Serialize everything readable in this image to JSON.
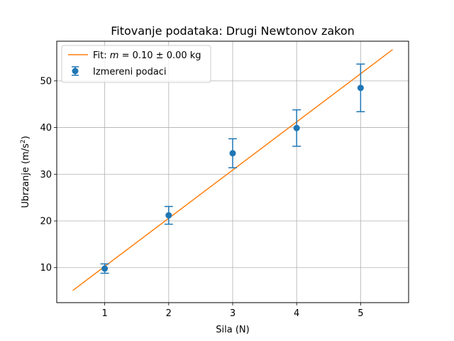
{
  "chart_data": {
    "type": "scatter",
    "title": "Fitovanje podataka: Drugi Newtonov zakon",
    "xlabel": "Sila (N)",
    "ylabel_main": "Ubrzanje (m/s",
    "ylabel_sup": "2",
    "ylabel_end": ")",
    "xlim": [
      0.25,
      5.75
    ],
    "ylim": [
      2.5,
      58.5
    ],
    "x_ticks": [
      1,
      2,
      3,
      4,
      5
    ],
    "y_ticks": [
      10,
      20,
      30,
      40,
      50
    ],
    "grid": true,
    "legend_position": "top-left",
    "series": [
      {
        "name": "Izmereni podaci",
        "kind": "errorbar-points",
        "color": "#1f77b4",
        "x": [
          1,
          2,
          3,
          4,
          5
        ],
        "y": [
          9.8,
          21.2,
          34.5,
          39.9,
          48.5
        ],
        "yerr": [
          1.0,
          1.9,
          3.1,
          3.9,
          5.1
        ]
      },
      {
        "name_prefix": "Fit: ",
        "name_math": "m",
        "name_rest": " = 0.10 ± 0.00 kg",
        "kind": "line",
        "color": "#ff7f0e",
        "x": [
          0.5,
          5.5
        ],
        "y": [
          5.1,
          56.7
        ]
      }
    ]
  }
}
